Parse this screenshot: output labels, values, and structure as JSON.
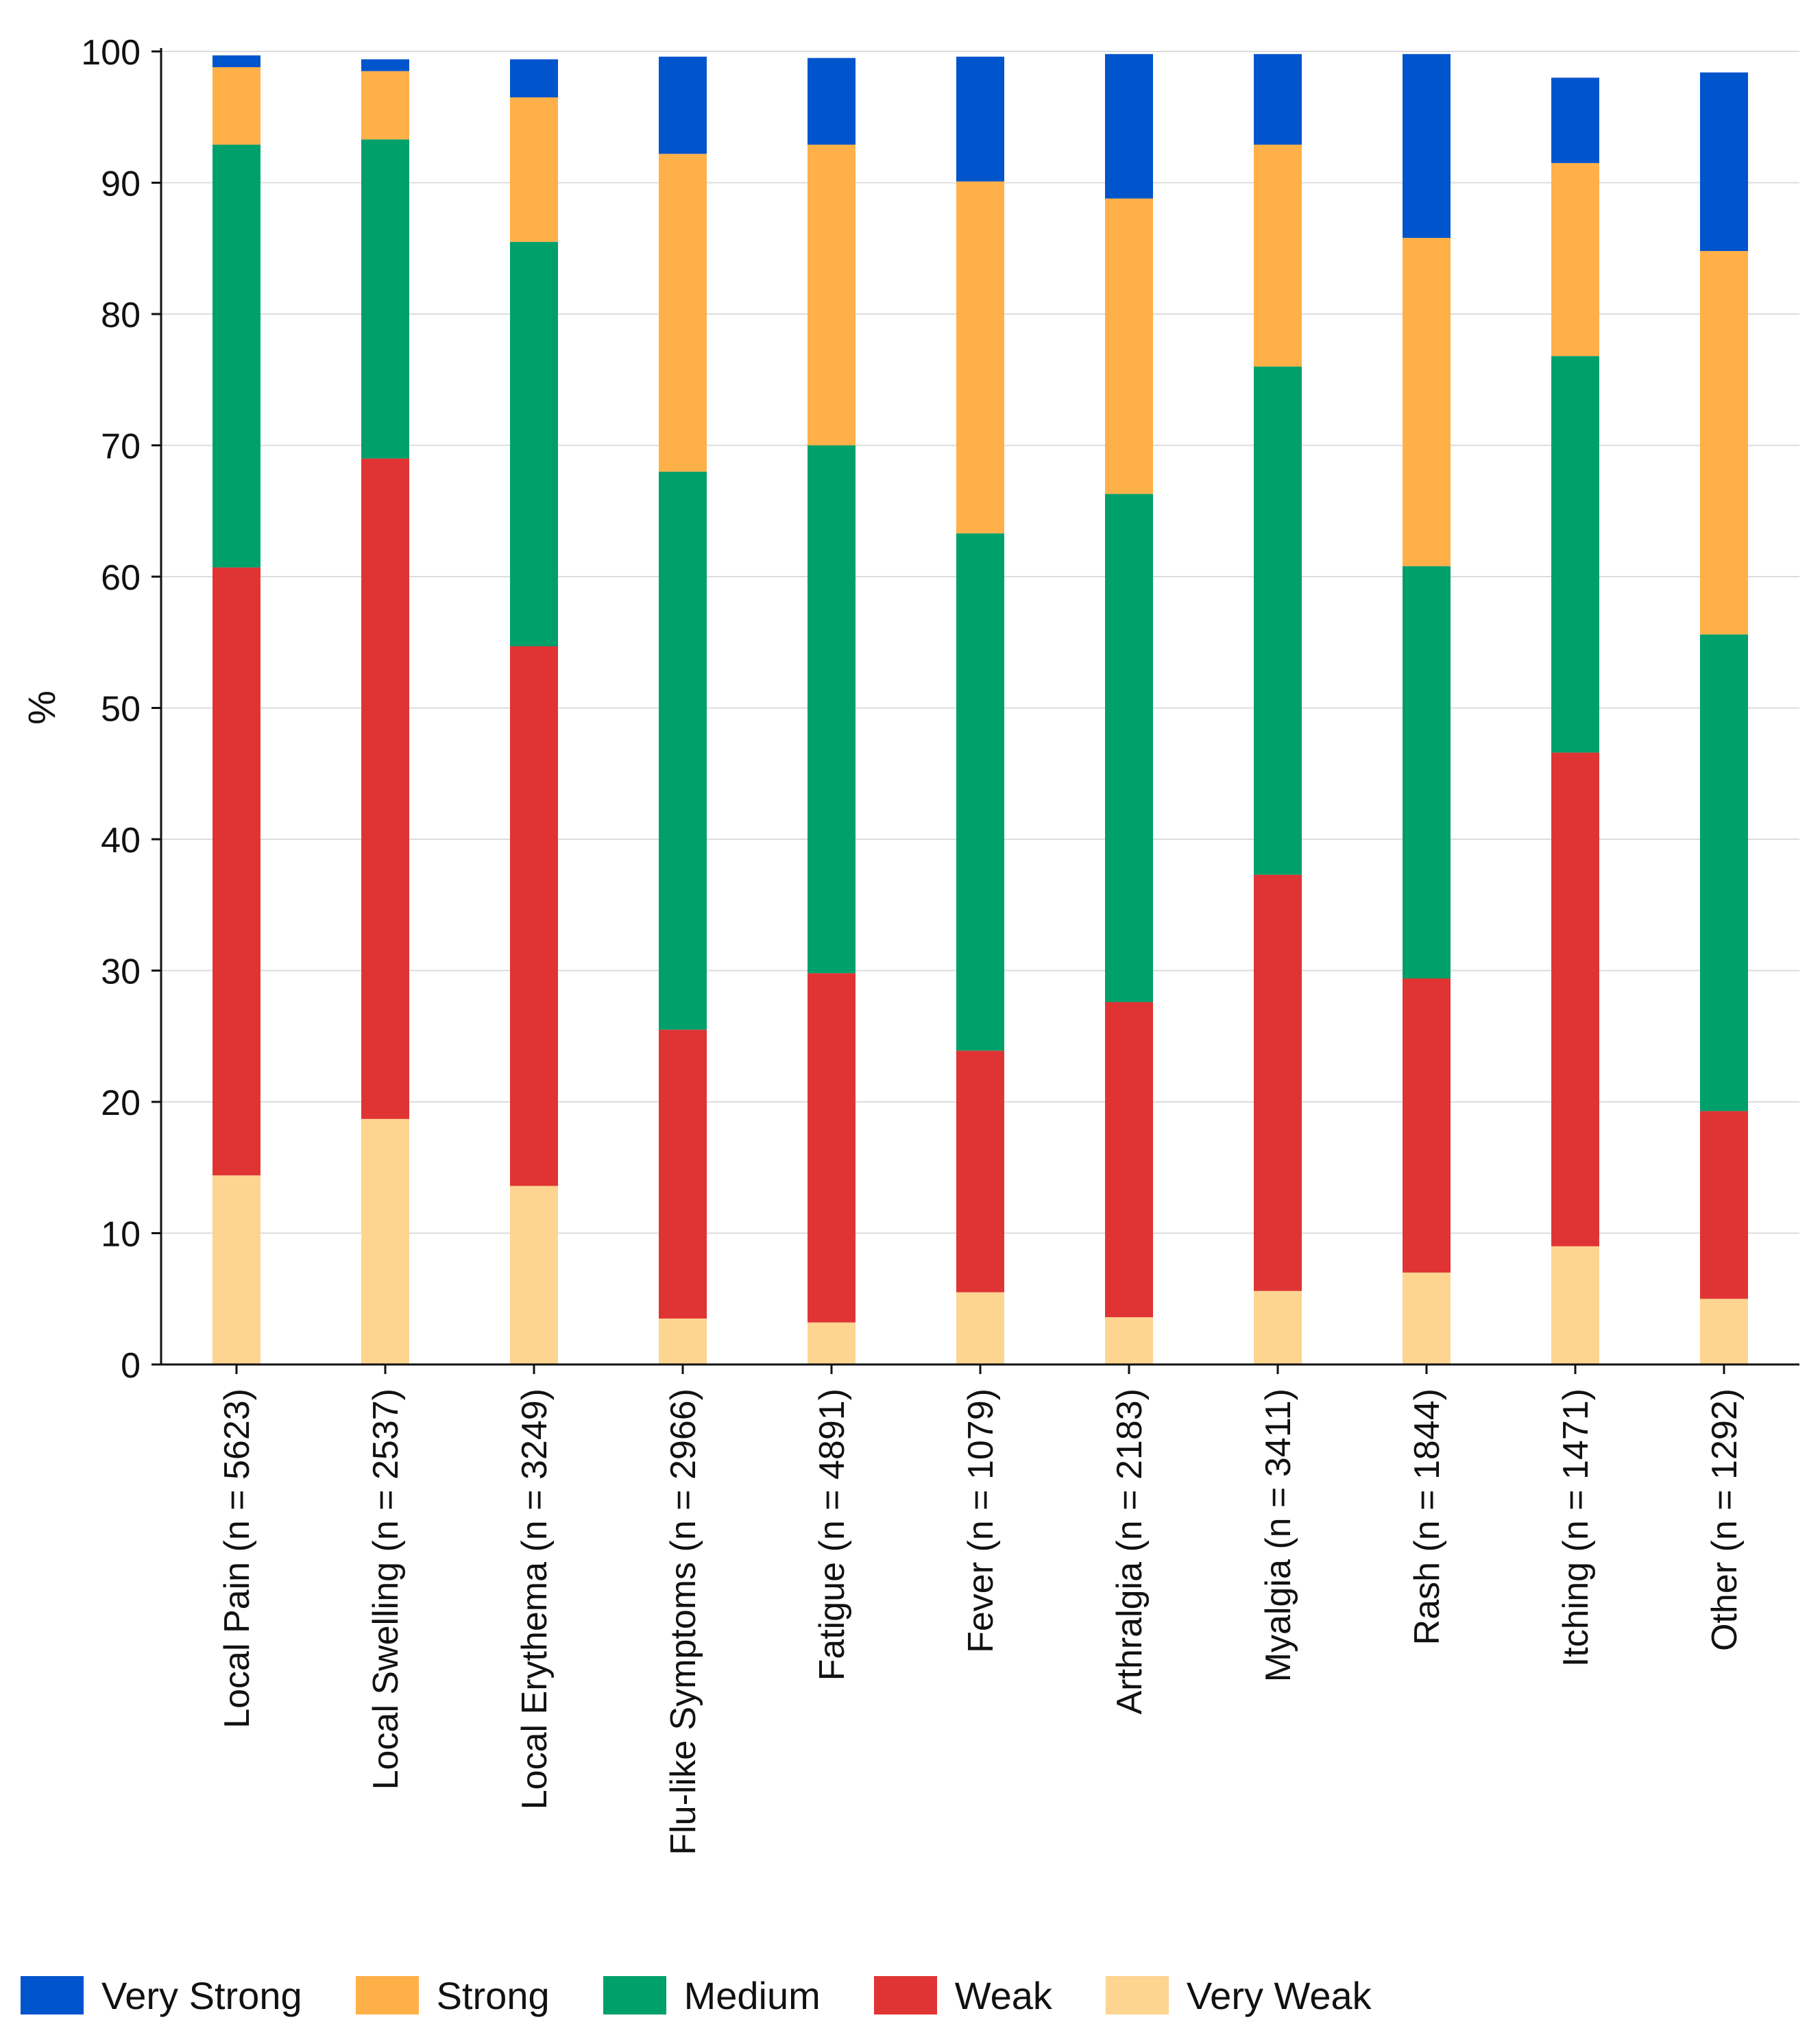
{
  "chart_data": {
    "type": "bar",
    "stacked": true,
    "title": "",
    "xlabel": "",
    "ylabel": "%",
    "ylim": [
      0,
      100
    ],
    "yticks": [
      0,
      10,
      20,
      30,
      40,
      50,
      60,
      70,
      80,
      90,
      100
    ],
    "grid": true,
    "legend_position": "bottom",
    "categories": [
      "Local Pain (n = 5623)",
      "Local Swelling (n = 2537)",
      "Local Erythema (n = 3249)",
      "Flu-like Symptoms (n = 2966)",
      "Fatigue (n = 4891)",
      "Fever (n = 1079)",
      "Arthralgia (n = 2183)",
      "Myalgia (n = 3411)",
      "Rash (n = 1844)",
      "Itching (n = 1471)",
      "Other (n = 1292)"
    ],
    "series": [
      {
        "name": "Very Weak",
        "color": "#FDD591",
        "values": [
          14.4,
          18.7,
          13.6,
          3.5,
          3.2,
          5.5,
          3.6,
          5.6,
          7.0,
          9.0,
          5.0
        ]
      },
      {
        "name": "Weak",
        "color": "#E03434",
        "values": [
          46.3,
          50.3,
          41.1,
          22.0,
          26.6,
          18.4,
          24.0,
          31.7,
          22.4,
          37.6,
          14.3
        ]
      },
      {
        "name": "Medium",
        "color": "#00A06B",
        "values": [
          32.2,
          24.3,
          30.8,
          42.5,
          40.2,
          39.4,
          38.7,
          38.7,
          31.4,
          30.2,
          36.3
        ]
      },
      {
        "name": "Strong",
        "color": "#FFB048",
        "values": [
          5.9,
          5.2,
          11.0,
          24.2,
          22.9,
          26.8,
          22.5,
          16.9,
          25.0,
          14.7,
          29.2
        ]
      },
      {
        "name": "Very Strong",
        "color": "#0054CC",
        "values": [
          0.9,
          0.9,
          2.9,
          7.4,
          6.6,
          9.5,
          11.0,
          6.9,
          14.0,
          6.5,
          13.6
        ]
      }
    ]
  },
  "legend": {
    "items": [
      {
        "label": "Very Strong",
        "color": "#0054CC"
      },
      {
        "label": "Strong",
        "color": "#FFB048"
      },
      {
        "label": "Medium",
        "color": "#00A06B"
      },
      {
        "label": "Weak",
        "color": "#E03434"
      },
      {
        "label": "Very Weak",
        "color": "#FDD591"
      }
    ]
  }
}
